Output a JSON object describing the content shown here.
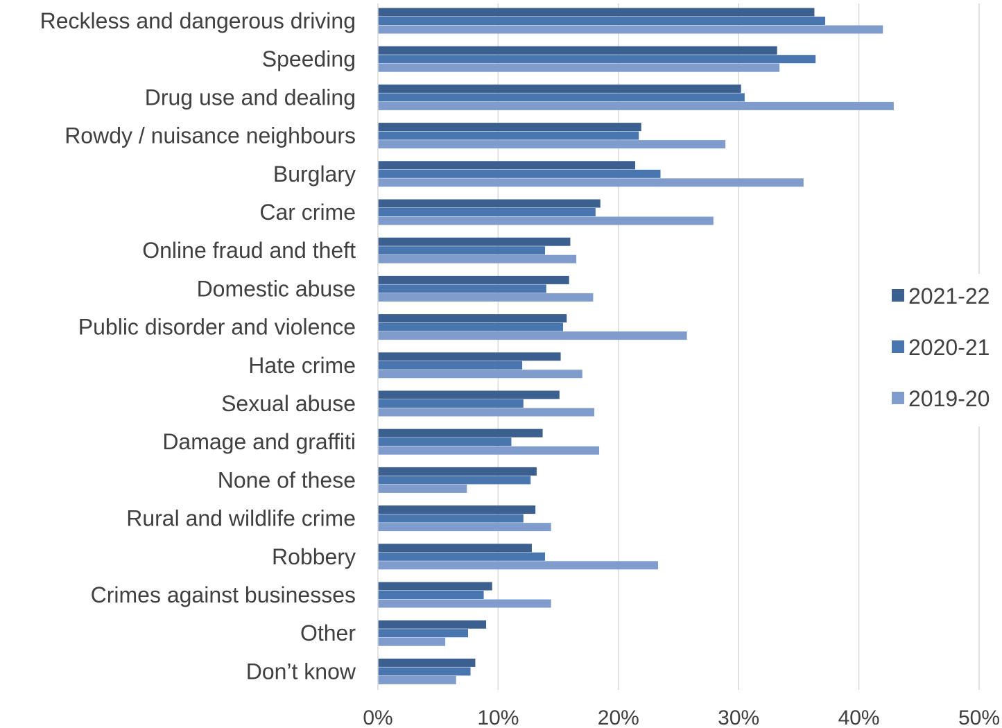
{
  "chart_data": {
    "type": "bar",
    "orientation": "horizontal",
    "title": "",
    "xlabel": "",
    "ylabel": "",
    "xlim": [
      0,
      50
    ],
    "x_ticks": [
      "0%",
      "10%",
      "20%",
      "30%",
      "40%",
      "50%"
    ],
    "grid": "vertical",
    "legend_position": "right",
    "categories": [
      "Reckless and dangerous driving",
      "Speeding",
      "Drug use and dealing",
      "Rowdy / nuisance neighbours",
      "Burglary",
      "Car crime",
      "Online fraud and theft",
      "Domestic abuse",
      "Public disorder and violence",
      "Hate crime",
      "Sexual abuse",
      "Damage and graffiti",
      "None of these",
      "Rural and wildlife crime",
      "Robbery",
      "Crimes against businesses",
      "Other",
      "Don’t know"
    ],
    "series": [
      {
        "name": "2021-22",
        "color": "#3b5f8f",
        "values": [
          36.3,
          33.2,
          30.2,
          21.9,
          21.4,
          18.5,
          16.0,
          15.9,
          15.7,
          15.2,
          15.1,
          13.7,
          13.2,
          13.1,
          12.8,
          9.5,
          9.0,
          8.1
        ]
      },
      {
        "name": "2020-21",
        "color": "#4a76b0",
        "values": [
          37.2,
          36.4,
          30.5,
          21.7,
          23.5,
          18.1,
          13.9,
          14.0,
          15.4,
          12.0,
          12.1,
          11.1,
          12.7,
          12.1,
          13.9,
          8.8,
          7.5,
          7.7
        ]
      },
      {
        "name": "2019-20",
        "color": "#7f9ccc",
        "values": [
          42.0,
          33.4,
          42.9,
          28.9,
          35.4,
          27.9,
          16.5,
          17.9,
          25.7,
          17.0,
          18.0,
          18.4,
          7.4,
          14.4,
          23.3,
          14.4,
          5.6,
          6.5
        ]
      }
    ]
  }
}
